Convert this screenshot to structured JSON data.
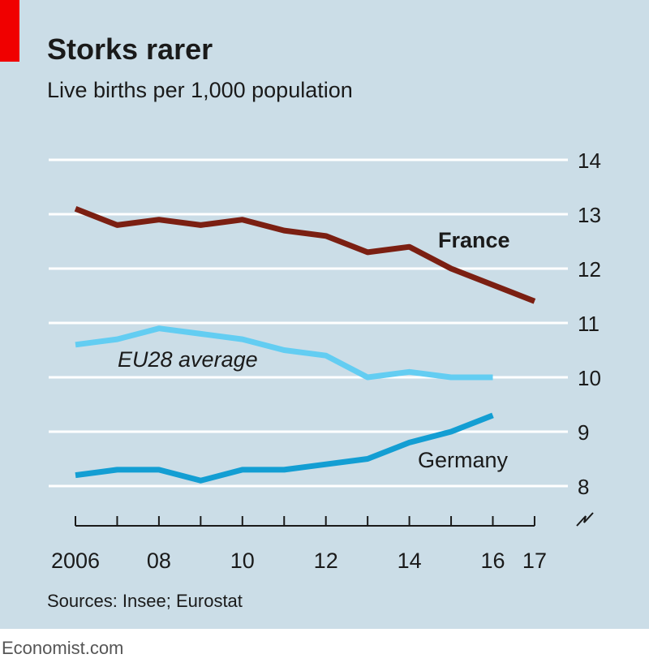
{
  "chart_data": {
    "type": "line",
    "title": "Storks rarer",
    "subtitle": "Live births per 1,000 population",
    "xlabel": "",
    "ylabel": "",
    "x": [
      2006,
      2007,
      2008,
      2009,
      2010,
      2011,
      2012,
      2013,
      2014,
      2015,
      2016,
      2017
    ],
    "xticks": [
      2006,
      2007,
      2008,
      2009,
      2010,
      2011,
      2012,
      2013,
      2014,
      2015,
      2016,
      2017
    ],
    "xtick_labels": [
      "2006",
      "08",
      "10",
      "12",
      "14",
      "16",
      "17"
    ],
    "xtick_label_years": [
      2006,
      2008,
      2010,
      2012,
      2014,
      2016,
      2017
    ],
    "ylim": [
      8,
      14
    ],
    "yticks": [
      8,
      9,
      10,
      11,
      12,
      13,
      14
    ],
    "ytick_labels": [
      "8",
      "9",
      "10",
      "11",
      "12",
      "13",
      "14"
    ],
    "grid": true,
    "axis_break": true,
    "series": [
      {
        "name": "France",
        "label": "France",
        "color": "#7b1f12",
        "bold": true,
        "values": [
          13.1,
          12.8,
          12.9,
          12.8,
          12.9,
          12.7,
          12.6,
          12.3,
          12.4,
          12.0,
          11.7,
          11.4
        ]
      },
      {
        "name": "EU28 average",
        "label": "EU28 average",
        "color": "#63cdf2",
        "italic": true,
        "values": [
          10.6,
          10.7,
          10.9,
          10.8,
          10.7,
          10.5,
          10.4,
          10.0,
          10.1,
          10.0,
          10.0,
          null
        ]
      },
      {
        "name": "Germany",
        "label": "Germany",
        "color": "#139ed3",
        "values": [
          8.2,
          8.3,
          8.3,
          8.1,
          8.3,
          8.3,
          8.4,
          8.5,
          8.8,
          9.0,
          9.3,
          null
        ]
      }
    ],
    "source": "Sources: Insee; Eurostat"
  },
  "footer": "Economist.com"
}
